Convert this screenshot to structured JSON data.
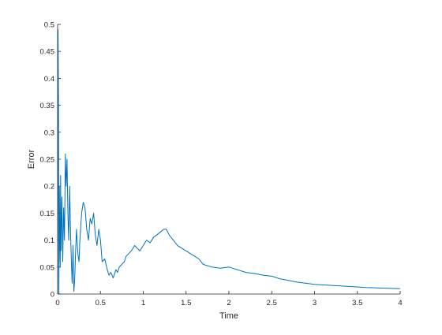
{
  "chart_data": {
    "type": "line",
    "title": "",
    "xlabel": "Time",
    "ylabel": "Error",
    "xlim": [
      0,
      4
    ],
    "ylim": [
      0,
      0.5
    ],
    "grid": false,
    "legend": "none",
    "x_ticks": [
      0,
      0.5,
      1,
      1.5,
      2,
      2.5,
      3,
      3.5,
      4
    ],
    "x_tick_labels": [
      "0",
      "0.5",
      "1",
      "1.5",
      "2",
      "2.5",
      "3",
      "3.5",
      "4"
    ],
    "y_ticks": [
      0,
      0.05,
      0.1,
      0.15,
      0.2,
      0.25,
      0.3,
      0.35,
      0.4,
      0.45,
      0.5
    ],
    "y_tick_labels": [
      "0",
      "0.05",
      "0.1",
      "0.15",
      "0.2",
      "0.25",
      "0.3",
      "0.35",
      "0.4",
      "0.45",
      "0.5"
    ],
    "series": [
      {
        "color": "#0072BD",
        "x": [
          0.0,
          0.005,
          0.01,
          0.015,
          0.02,
          0.025,
          0.03,
          0.035,
          0.04,
          0.05,
          0.06,
          0.07,
          0.08,
          0.09,
          0.1,
          0.11,
          0.12,
          0.13,
          0.14,
          0.15,
          0.16,
          0.17,
          0.18,
          0.19,
          0.2,
          0.21,
          0.22,
          0.23,
          0.24,
          0.25,
          0.26,
          0.28,
          0.3,
          0.32,
          0.34,
          0.36,
          0.38,
          0.4,
          0.42,
          0.44,
          0.46,
          0.48,
          0.5,
          0.52,
          0.55,
          0.58,
          0.6,
          0.62,
          0.65,
          0.68,
          0.7,
          0.72,
          0.75,
          0.78,
          0.8,
          0.83,
          0.86,
          0.9,
          0.93,
          0.96,
          1.0,
          1.04,
          1.08,
          1.12,
          1.16,
          1.2,
          1.24,
          1.27,
          1.3,
          1.35,
          1.4,
          1.45,
          1.5,
          1.55,
          1.6,
          1.65,
          1.7,
          1.8,
          1.9,
          2.0,
          2.1,
          2.2,
          2.3,
          2.4,
          2.5,
          2.6,
          2.8,
          3.0,
          3.2,
          3.4,
          3.6,
          3.8,
          4.0
        ],
        "y": [
          0.0,
          0.49,
          0.35,
          0.0,
          0.2,
          0.1,
          0.05,
          0.22,
          0.08,
          0.18,
          0.06,
          0.16,
          0.1,
          0.26,
          0.2,
          0.25,
          0.15,
          0.1,
          0.2,
          0.12,
          0.06,
          0.02,
          0.09,
          0.005,
          0.03,
          0.08,
          0.12,
          0.09,
          0.07,
          0.06,
          0.1,
          0.15,
          0.17,
          0.16,
          0.12,
          0.1,
          0.14,
          0.13,
          0.15,
          0.11,
          0.09,
          0.12,
          0.1,
          0.06,
          0.065,
          0.045,
          0.035,
          0.04,
          0.03,
          0.045,
          0.04,
          0.05,
          0.055,
          0.06,
          0.07,
          0.075,
          0.08,
          0.09,
          0.085,
          0.08,
          0.09,
          0.1,
          0.095,
          0.105,
          0.11,
          0.115,
          0.12,
          0.12,
          0.11,
          0.1,
          0.09,
          0.085,
          0.08,
          0.075,
          0.07,
          0.065,
          0.055,
          0.05,
          0.048,
          0.05,
          0.045,
          0.04,
          0.038,
          0.035,
          0.033,
          0.028,
          0.022,
          0.018,
          0.016,
          0.014,
          0.012,
          0.011,
          0.01
        ]
      }
    ]
  }
}
